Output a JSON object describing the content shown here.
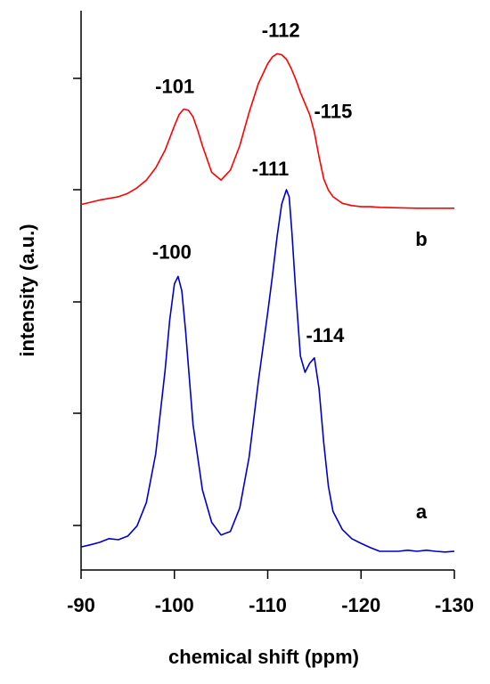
{
  "chart_data": {
    "type": "line",
    "xlabel": "chemical shift (ppm)",
    "ylabel": "intensity (a.u.)",
    "xlim": [
      -90,
      -130
    ],
    "xticks": [
      "-90",
      "-100",
      "-110",
      "-120",
      "-130"
    ],
    "ylim": [
      0,
      1
    ],
    "y_tick_labels_shown": false,
    "grid": false,
    "series": [
      {
        "name": "a",
        "color": "#0000cc",
        "x": [
          -90,
          -91,
          -92,
          -93,
          -94,
          -95,
          -96,
          -97,
          -98,
          -99,
          -99.5,
          -100,
          -100.4,
          -100.8,
          -101.2,
          -101.6,
          -102,
          -103,
          -104,
          -105,
          -106,
          -107,
          -108,
          -109,
          -110,
          -110.5,
          -111,
          -111.5,
          -112,
          -112.3,
          -112.6,
          -113,
          -113.5,
          -114,
          -114.5,
          -115,
          -115.5,
          -116,
          -116.5,
          -117,
          -118,
          -119,
          -120,
          -121,
          -122,
          -123,
          -124,
          -125,
          -126,
          -127,
          -128,
          -129,
          -130
        ],
        "values": [
          0.012,
          0.018,
          0.025,
          0.035,
          0.032,
          0.042,
          0.07,
          0.135,
          0.27,
          0.5,
          0.64,
          0.74,
          0.76,
          0.72,
          0.61,
          0.48,
          0.35,
          0.17,
          0.08,
          0.045,
          0.055,
          0.12,
          0.26,
          0.47,
          0.66,
          0.76,
          0.87,
          0.96,
          1.0,
          0.98,
          0.88,
          0.72,
          0.54,
          0.495,
          0.52,
          0.535,
          0.45,
          0.3,
          0.18,
          0.11,
          0.06,
          0.035,
          0.022,
          0.01,
          0.0,
          0.0,
          0.0,
          0.003,
          0.0,
          0.003,
          0.0,
          -0.002,
          0.0
        ]
      },
      {
        "name": "b",
        "color": "#ff0000",
        "x": [
          -90,
          -92,
          -94,
          -95,
          -96,
          -97,
          -98,
          -99,
          -100,
          -100.5,
          -101,
          -101.5,
          -102,
          -102.5,
          -103,
          -104,
          -105,
          -106,
          -107,
          -108,
          -109,
          -110,
          -110.5,
          -111,
          -111.5,
          -112,
          -112.5,
          -113,
          -113.5,
          -114,
          -114.5,
          -115,
          -115.5,
          -116,
          -116.5,
          -117,
          -118,
          -119,
          -120,
          -121,
          -122,
          -124,
          -126,
          -128,
          -130
        ],
        "values": [
          0.335,
          0.355,
          0.37,
          0.385,
          0.41,
          0.445,
          0.5,
          0.58,
          0.69,
          0.74,
          0.765,
          0.76,
          0.73,
          0.67,
          0.6,
          0.48,
          0.445,
          0.49,
          0.6,
          0.75,
          0.88,
          0.97,
          1.0,
          1.015,
          1.01,
          0.99,
          0.95,
          0.9,
          0.84,
          0.79,
          0.74,
          0.66,
          0.55,
          0.45,
          0.4,
          0.37,
          0.34,
          0.33,
          0.325,
          0.325,
          0.322,
          0.32,
          0.318,
          0.318,
          0.318
        ]
      }
    ],
    "annotations": [
      {
        "text": "-101",
        "x": -101,
        "series": "b"
      },
      {
        "text": "-112",
        "x": -111.5,
        "series": "b"
      },
      {
        "text": "-115",
        "x": -115,
        "series": "b"
      },
      {
        "text": "-100",
        "x": -100.4,
        "series": "a"
      },
      {
        "text": "-111",
        "x": -112,
        "series": "a"
      },
      {
        "text": "-114",
        "x": -115,
        "series": "a"
      }
    ],
    "trace_labels": [
      "b",
      "a"
    ]
  }
}
